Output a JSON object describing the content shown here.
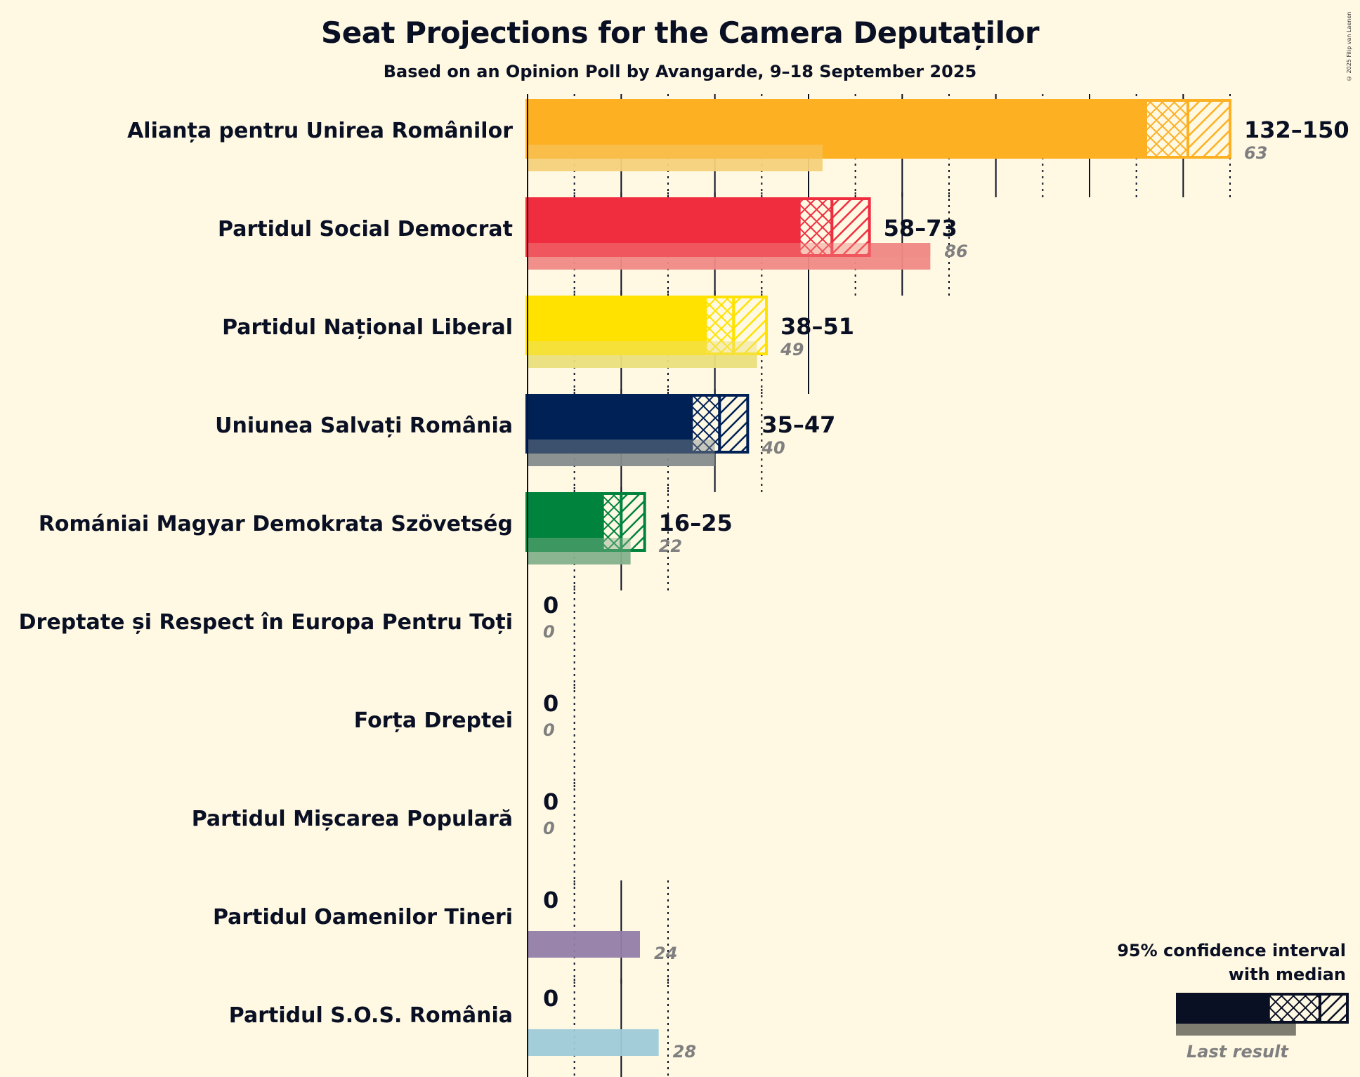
{
  "chart_data": {
    "type": "bar",
    "title": "Seat Projections for the Camera Deputaților",
    "subtitle": "Based on an Opinion Poll by Avangarde, 9–18 September 2025",
    "copyright": "© 2025 Filip van Laenen",
    "xlabel": "",
    "ylabel": "",
    "xlim": [
      0,
      150
    ],
    "grid": {
      "major_every": 20,
      "minor_every": 10
    },
    "legend": {
      "placement": "bottom-right",
      "title_line1": "95% confidence interval",
      "title_line2": "with median",
      "last_result_label": "Last result",
      "example": {
        "ci_low": 54,
        "median": 84,
        "ci_high": 100,
        "last": 70
      }
    },
    "parties": [
      {
        "name": "Alianța pentru Unirea Românilor",
        "ci_low": 132,
        "median": 141,
        "ci_high": 150,
        "range_label": "132–150",
        "last_result": 63,
        "color": "#fdb022",
        "last_color": "#f5d17a"
      },
      {
        "name": "Partidul Social Democrat",
        "ci_low": 58,
        "median": 65,
        "ci_high": 73,
        "range_label": "58–73",
        "last_result": 86,
        "color": "#ef2d3f",
        "last_color": "#f08a85"
      },
      {
        "name": "Partidul Național Liberal",
        "ci_low": 38,
        "median": 44,
        "ci_high": 51,
        "range_label": "38–51",
        "last_result": 49,
        "color": "#ffe200",
        "last_color": "#ebdf7c"
      },
      {
        "name": "Uniunea Salvați România",
        "ci_low": 35,
        "median": 41,
        "ci_high": 47,
        "range_label": "35–47",
        "last_result": 40,
        "color": "#002155",
        "last_color": "#868b8c"
      },
      {
        "name": "Romániai Magyar Demokrata Szövetség",
        "ci_low": 16,
        "median": 20,
        "ci_high": 25,
        "range_label": "16–25",
        "last_result": 22,
        "color": "#00843d",
        "last_color": "#85b08b"
      },
      {
        "name": "Dreptate și Respect în Europa Pentru Toți",
        "ci_low": 0,
        "median": 0,
        "ci_high": 0,
        "range_label": "0",
        "last_result": 0,
        "color": "#555555",
        "last_color": "#aaaaaa"
      },
      {
        "name": "Forța Dreptei",
        "ci_low": 0,
        "median": 0,
        "ci_high": 0,
        "range_label": "0",
        "last_result": 0,
        "color": "#555555",
        "last_color": "#aaaaaa"
      },
      {
        "name": "Partidul Mișcarea Populară",
        "ci_low": 0,
        "median": 0,
        "ci_high": 0,
        "range_label": "0",
        "last_result": 0,
        "color": "#555555",
        "last_color": "#aaaaaa"
      },
      {
        "name": "Partidul Oamenilor Tineri",
        "ci_low": 0,
        "median": 0,
        "ci_high": 0,
        "range_label": "0",
        "last_result": 24,
        "color": "#6b4c96",
        "last_color": "#937ea9"
      },
      {
        "name": "Partidul S.O.S. România",
        "ci_low": 0,
        "median": 0,
        "ci_high": 0,
        "range_label": "0",
        "last_result": 28,
        "color": "#1f78b4",
        "last_color": "#9ecad8"
      }
    ]
  }
}
